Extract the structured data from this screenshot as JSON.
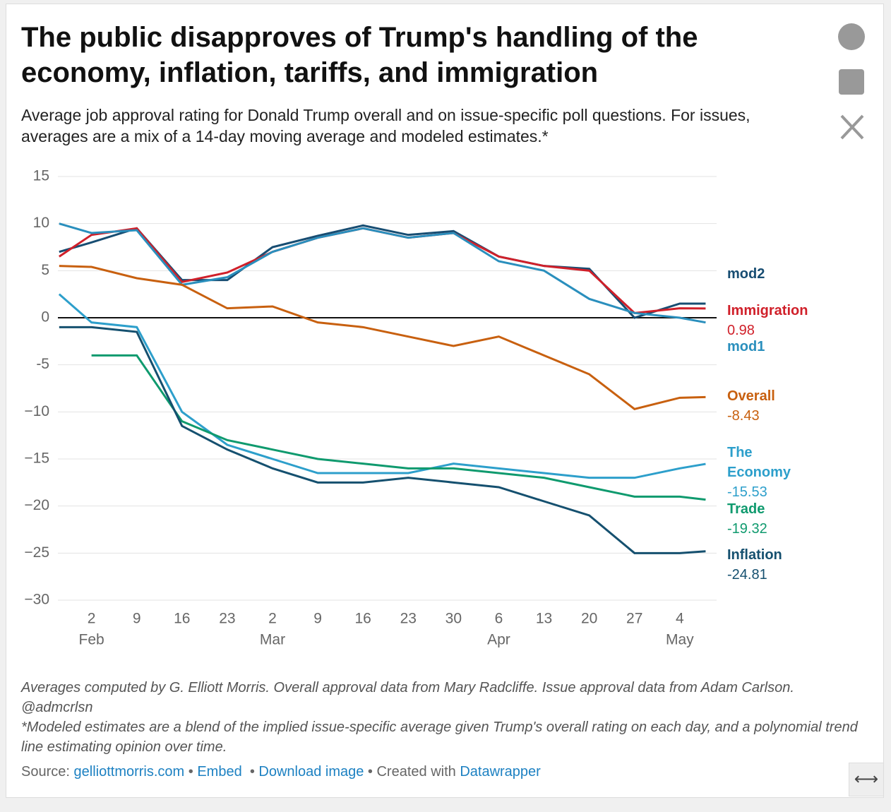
{
  "header": {
    "title": "The public disapproves of Trump's handling of the economy, inflation, tariffs, and immigration",
    "subtitle": "Average job approval rating for Donald Trump overall and on issue-specific poll questions. For issues, averages are a mix of a 14-day moving average and modeled estimates.*"
  },
  "chart_data": {
    "type": "line",
    "x": [
      28,
      33,
      40,
      47,
      54,
      61,
      68,
      75,
      82,
      89,
      96,
      103,
      110,
      117,
      124,
      128
    ],
    "xlim": [
      27.8,
      129.7
    ],
    "xticks": [
      {
        "value": 33,
        "label": "2"
      },
      {
        "value": 40,
        "label": "9"
      },
      {
        "value": 47,
        "label": "16"
      },
      {
        "value": 54,
        "label": "23"
      },
      {
        "value": 61,
        "label": "2"
      },
      {
        "value": 68,
        "label": "9"
      },
      {
        "value": 75,
        "label": "16"
      },
      {
        "value": 82,
        "label": "23"
      },
      {
        "value": 89,
        "label": "30"
      },
      {
        "value": 96,
        "label": "6"
      },
      {
        "value": 103,
        "label": "13"
      },
      {
        "value": 110,
        "label": "20"
      },
      {
        "value": 117,
        "label": "27"
      },
      {
        "value": 124,
        "label": "4"
      }
    ],
    "month_labels": [
      {
        "value": 33,
        "label": "Feb"
      },
      {
        "value": 61,
        "label": "Mar"
      },
      {
        "value": 96,
        "label": "Apr"
      },
      {
        "value": 124,
        "label": "May"
      }
    ],
    "ylim": [
      -30,
      15
    ],
    "yticks": [
      15,
      10,
      5,
      0,
      {
        "value": -5,
        "label": "-5"
      },
      {
        "value": -10,
        "label": "−10"
      },
      {
        "value": -15,
        "label": "−15"
      },
      {
        "value": -20,
        "label": "−20"
      },
      {
        "value": -25,
        "label": "−25"
      },
      {
        "value": -30,
        "label": "−30"
      }
    ],
    "grid": true,
    "series": [
      {
        "name": "mod2",
        "color": "#174d72",
        "values": [
          7,
          8,
          9.5,
          4,
          4,
          7.5,
          8.7,
          9.8,
          8.8,
          9.2,
          6.5,
          5.5,
          5.2,
          0,
          1.5,
          1.5
        ]
      },
      {
        "name": "Immigration",
        "color": "#d0202a",
        "values": [
          6.5,
          8.8,
          9.5,
          3.8,
          4.8,
          7,
          8.5,
          9.5,
          8.5,
          9,
          6.5,
          5.5,
          5,
          0.5,
          1,
          0.98
        ],
        "show_value": true
      },
      {
        "name": "mod1",
        "color": "#2a8fbd",
        "values": [
          10,
          9,
          9.3,
          3.5,
          4.3,
          7,
          8.5,
          9.5,
          8.5,
          9,
          6,
          5,
          2,
          0.5,
          0,
          -0.5
        ]
      },
      {
        "name": "Overall",
        "color": "#c8600f",
        "values": [
          5.5,
          5.4,
          4.2,
          3.5,
          1,
          1.2,
          -0.5,
          -1,
          -2,
          -3,
          -2,
          -4,
          -6,
          -9.7,
          -8.5,
          -8.43
        ],
        "show_value": true
      },
      {
        "name": "The Economy",
        "color": "#2d9fcb",
        "values": [
          2.5,
          -0.5,
          -1,
          -10,
          -13.5,
          -15,
          -16.5,
          -16.5,
          -16.5,
          -15.5,
          -16,
          -16.5,
          -17,
          -17,
          -16,
          -15.53
        ],
        "show_value": true
      },
      {
        "name": "Trade",
        "color": "#0f9a6e",
        "values": [
          null,
          -4,
          -4,
          -11,
          -13,
          -14,
          -15,
          -15.5,
          -16,
          -16,
          -16.5,
          -17,
          -18,
          -19,
          -19,
          -19.32
        ],
        "show_value": true
      },
      {
        "name": "Inflation",
        "color": "#15506f",
        "values": [
          -1,
          -1,
          -1.5,
          -11.5,
          -14,
          -16,
          -17.5,
          -17.5,
          -17,
          -17.5,
          -18,
          -19.5,
          -21,
          -25,
          -25,
          -24.81
        ],
        "show_value": true
      }
    ]
  },
  "notes": [
    "Averages computed by G. Elliott Morris. Overall approval data from Mary Radcliffe. Issue approval data from Adam Carlson. @admcrlsn",
    "*Modeled estimates are a blend of the implied issue-specific average given Trump's overall rating on each day, and a polynomial trend line estimating opinion over time."
  ],
  "source": {
    "label": "Source:",
    "site": "gelliottmorris.com",
    "embed": "Embed",
    "download": "Download image",
    "created": "Created with",
    "tool": "Datawrapper"
  }
}
